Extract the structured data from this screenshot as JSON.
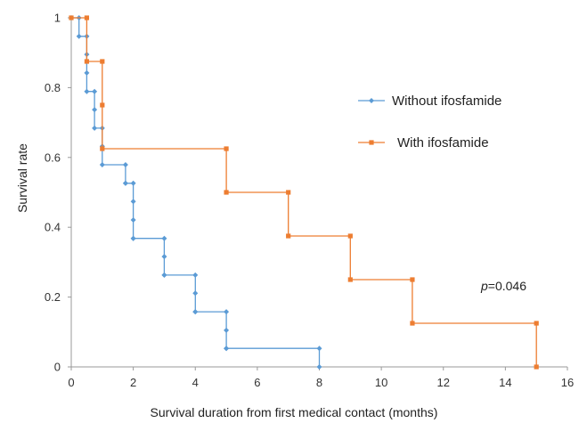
{
  "chart_data": {
    "type": "line",
    "subtype": "kaplan-meier-step",
    "xlabel": "Survival duration from first medical contact (months)",
    "ylabel": "Survival rate",
    "xlim": [
      0,
      16
    ],
    "ylim": [
      0,
      1
    ],
    "x_ticks": [
      "0",
      "2",
      "4",
      "6",
      "8",
      "10",
      "12",
      "14",
      "16"
    ],
    "y_ticks": [
      "0",
      "0.2",
      "0.4",
      "0.6",
      "0.8",
      "1"
    ],
    "grid": false,
    "legend_position": "right",
    "annotation": {
      "prefix": "p",
      "value": "=0.046"
    },
    "series": [
      {
        "name": "Without ifosfamide",
        "color": "#5b9bd5",
        "marker": "diamond",
        "x": [
          0,
          0.25,
          0.5,
          0.5,
          0.5,
          0.5,
          0.75,
          0.75,
          0.75,
          1,
          1,
          1,
          1.75,
          1.75,
          2,
          2,
          2,
          2,
          3,
          3,
          3,
          4,
          4,
          4,
          5,
          5,
          5,
          8,
          8
        ],
        "y": [
          1,
          1,
          1,
          0.947,
          0.895,
          0.842,
          0.842,
          0.789,
          0.737,
          0.737,
          0.684,
          0.632,
          0.632,
          0.579,
          0.579,
          0.526,
          0.474,
          0.421,
          0.421,
          0.368,
          0.316,
          0.316,
          0.263,
          0.211,
          0.211,
          0.158,
          0.105,
          0.105,
          0
        ],
        "x_orig": [
          0,
          0.25,
          0.25,
          0.5,
          0.5,
          0.5,
          0.5,
          0.75,
          0.75,
          0.75,
          1,
          1,
          1,
          1.75,
          1.75,
          1.75,
          2,
          2,
          2,
          2,
          2,
          3,
          3,
          3,
          3,
          4,
          4,
          4,
          4,
          5,
          5,
          5,
          5,
          8,
          8
        ],
        "y_orig": [
          1,
          1,
          0.947,
          0.947,
          0.895,
          0.842,
          0.789,
          0.789,
          0.737,
          0.684,
          0.684,
          0.632,
          0.579,
          0.579,
          0.526,
          0.526,
          0.526,
          0.474,
          0.421,
          0.368,
          0.368,
          0.368,
          0.316,
          0.263,
          0.263,
          0.263,
          0.211,
          0.158,
          0.158,
          0.158,
          0.105,
          0.053,
          0.053,
          0.053,
          0
        ]
      },
      {
        "name": "With ifosfamide",
        "color": "#ed7d31",
        "marker": "square",
        "x": [
          0,
          0.5,
          0.5,
          1,
          1,
          1,
          5,
          5,
          7,
          7,
          9,
          9,
          11,
          11,
          15,
          15
        ],
        "y": [
          1,
          1,
          0.875,
          0.875,
          0.75,
          0.625,
          0.625,
          0.5,
          0.5,
          0.375,
          0.375,
          0.25,
          0.25,
          0.125,
          0.125,
          0
        ]
      }
    ]
  }
}
